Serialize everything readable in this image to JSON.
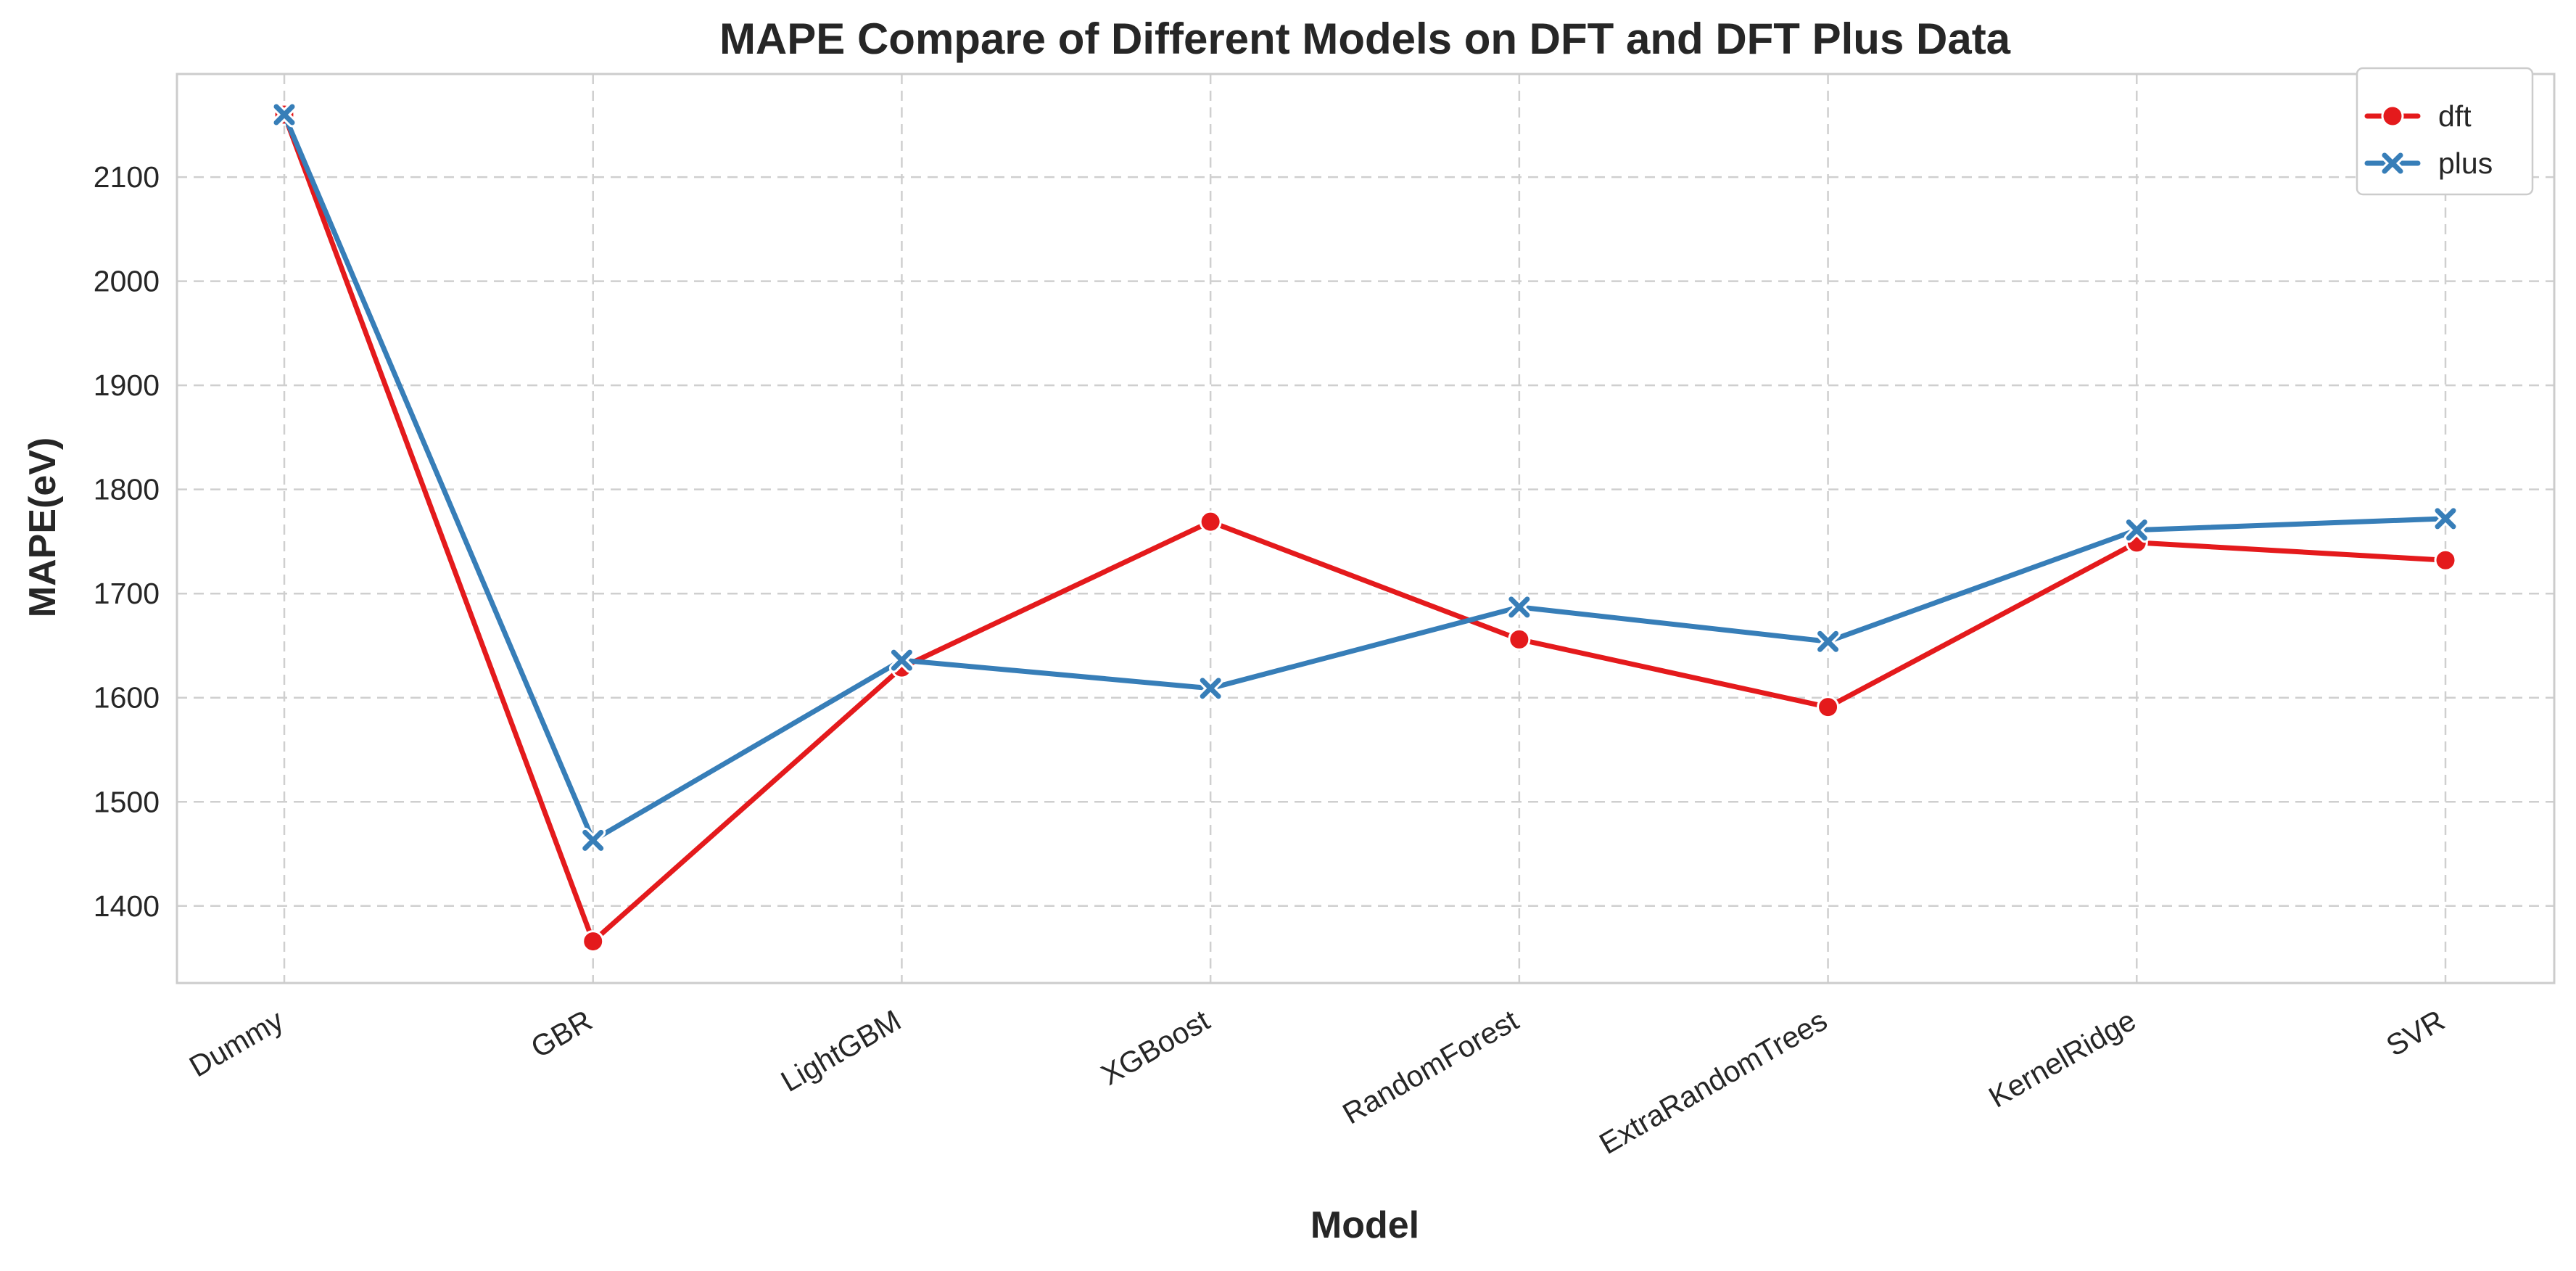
{
  "chart_data": {
    "type": "line",
    "title": "MAPE Compare of Different Models on DFT and DFT Plus Data",
    "xlabel": "Model",
    "ylabel": "MAPE(eV)",
    "categories": [
      "Dummy",
      "GBR",
      "LightGBM",
      "XGBoost",
      "RandomForest",
      "ExtraRandomTrees",
      "KernelRidge",
      "SVR"
    ],
    "series": [
      {
        "name": "dft",
        "color": "#e41a1c",
        "marker": "circle",
        "values": [
          2160,
          1366,
          1629,
          1769,
          1656,
          1591,
          1749,
          1732
        ]
      },
      {
        "name": "plus",
        "color": "#377eb8",
        "marker": "x",
        "values": [
          2160,
          1463,
          1636,
          1609,
          1687,
          1654,
          1761,
          1772
        ]
      }
    ],
    "ylim": [
      1326,
      2199
    ],
    "yticks": [
      1400,
      1500,
      1600,
      1700,
      1800,
      1900,
      2000,
      2100
    ],
    "grid": true,
    "legend_position": "top-right"
  }
}
